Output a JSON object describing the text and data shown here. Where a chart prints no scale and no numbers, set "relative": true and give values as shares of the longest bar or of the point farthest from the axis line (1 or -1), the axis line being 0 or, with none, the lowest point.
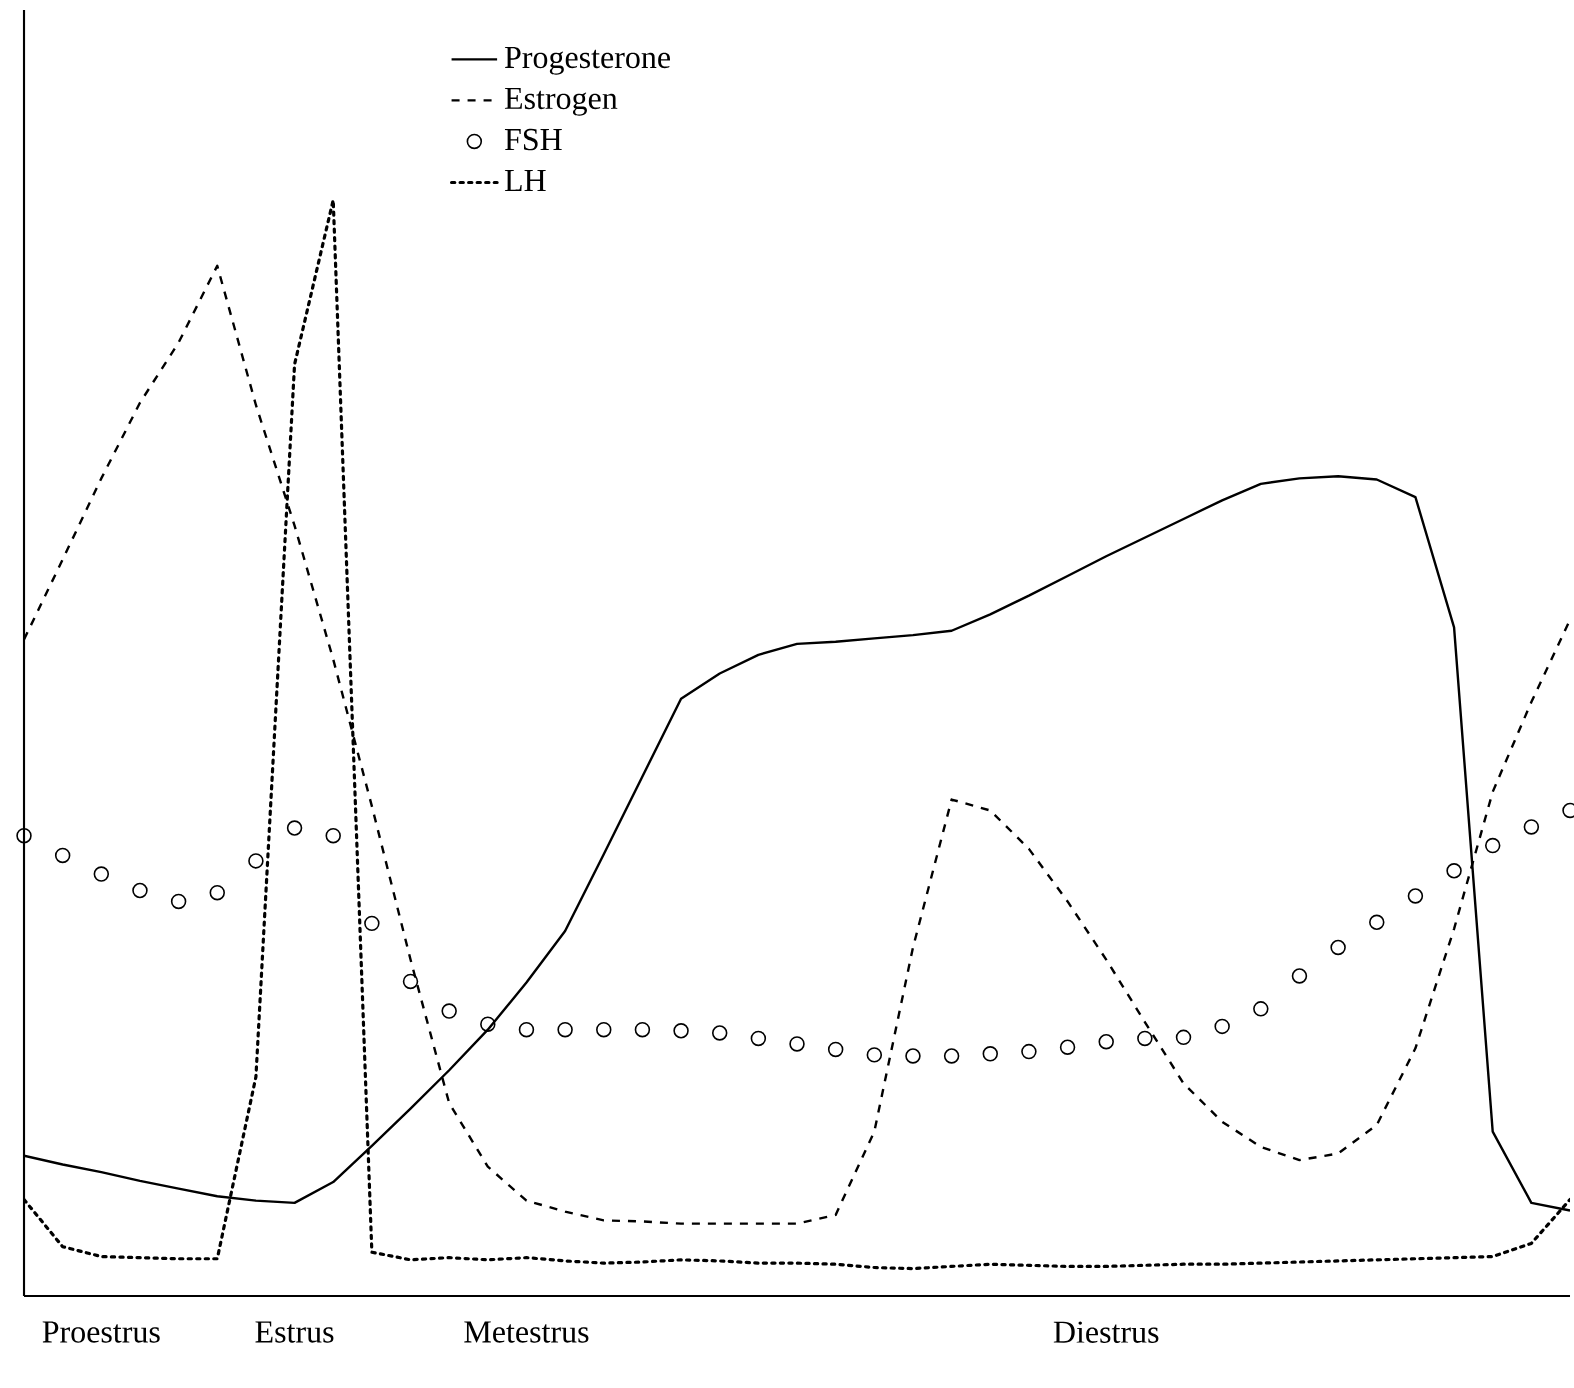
{
  "chart_data": {
    "type": "line",
    "relative": true,
    "legend": "top",
    "grid": false,
    "categories": [
      null,
      null,
      "Proestrus",
      null,
      null,
      null,
      null,
      "Estrus",
      null,
      null,
      null,
      null,
      null,
      "Metestrus",
      null,
      null,
      null,
      null,
      null,
      null,
      null,
      null,
      null,
      null,
      null,
      null,
      null,
      null,
      "Diestrus",
      null,
      null,
      null,
      null,
      null,
      null,
      null,
      null,
      null,
      null,
      null,
      null
    ],
    "series": [
      {
        "name": "Progesterone",
        "color": "#000000",
        "line_style": "solid",
        "marker": "none",
        "values": [
          0.128,
          0.12,
          0.113,
          0.105,
          0.098,
          0.091,
          0.087,
          0.085,
          0.104,
          0.137,
          0.171,
          0.206,
          0.243,
          0.286,
          0.333,
          0.403,
          0.474,
          0.545,
          0.568,
          0.585,
          0.595,
          0.597,
          0.6,
          0.603,
          0.607,
          0.622,
          0.639,
          0.657,
          0.675,
          0.692,
          0.709,
          0.726,
          0.741,
          0.746,
          0.748,
          0.745,
          0.729,
          0.61,
          0.15,
          0.085,
          0.078
        ]
      },
      {
        "name": "Estrogen",
        "color": "#000000",
        "line_style": "dashed",
        "marker": "none",
        "values": [
          0.599,
          0.672,
          0.746,
          0.815,
          0.87,
          0.94,
          0.813,
          0.703,
          0.581,
          0.447,
          0.307,
          0.176,
          0.118,
          0.087,
          0.077,
          0.069,
          0.068,
          0.066,
          0.066,
          0.066,
          0.066,
          0.074,
          0.15,
          0.318,
          0.453,
          0.443,
          0.408,
          0.36,
          0.307,
          0.25,
          0.194,
          0.159,
          0.136,
          0.124,
          0.13,
          0.156,
          0.226,
          0.335,
          0.46,
          0.542,
          0.617
        ]
      },
      {
        "name": "FSH",
        "type": "scatter",
        "color": "#000000",
        "marker": "circle",
        "values": [
          0.42,
          0.402,
          0.385,
          0.37,
          0.36,
          0.368,
          0.397,
          0.427,
          0.42,
          0.34,
          0.287,
          0.26,
          0.248,
          0.243,
          0.243,
          0.243,
          0.243,
          0.242,
          0.24,
          0.235,
          0.23,
          0.225,
          0.22,
          0.219,
          0.219,
          0.221,
          0.223,
          0.227,
          0.232,
          0.235,
          0.236,
          0.246,
          0.262,
          0.292,
          0.318,
          0.341,
          0.365,
          0.388,
          0.411,
          0.428,
          0.443
        ]
      },
      {
        "name": "LH",
        "color": "#000000",
        "line_style": "dotted",
        "marker": "none",
        "values": [
          0.088,
          0.045,
          0.036,
          0.035,
          0.034,
          0.034,
          0.2,
          0.85,
          1,
          0.04,
          0.033,
          0.035,
          0.033,
          0.035,
          0.032,
          0.03,
          0.031,
          0.033,
          0.032,
          0.03,
          0.03,
          0.029,
          0.026,
          0.025,
          0.027,
          0.029,
          0.028,
          0.027,
          0.027,
          0.028,
          0.029,
          0.029,
          0.03,
          0.031,
          0.032,
          0.033,
          0.034,
          0.035,
          0.036,
          0.048,
          0.088
        ]
      }
    ]
  }
}
